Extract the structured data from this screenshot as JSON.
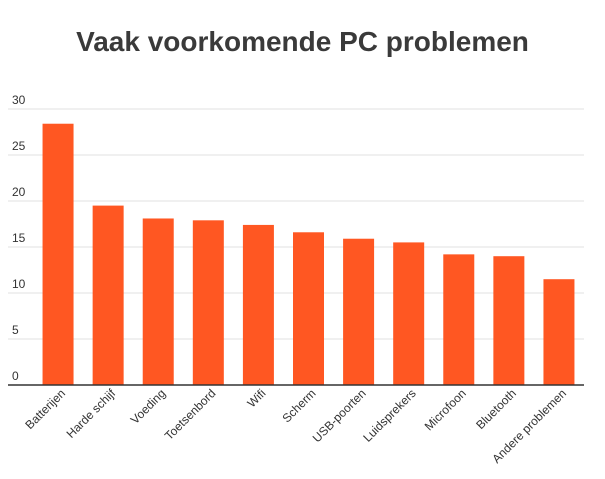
{
  "chart_data": {
    "type": "bar",
    "title": "Vaak voorkomende PC problemen",
    "xlabel": "",
    "ylabel": "",
    "categories": [
      "Batterijen",
      "Harde schijf",
      "Voeding",
      "Toetsenbord",
      "Wifi",
      "Scherm",
      "USB-poorten",
      "Luidsprekers",
      "Microfoon",
      "Bluetooth",
      "Andere problemen"
    ],
    "values": [
      28.4,
      19.5,
      18.1,
      17.9,
      17.4,
      16.6,
      15.9,
      15.5,
      14.2,
      14.0,
      11.5
    ],
    "ylim": [
      0,
      30
    ],
    "yticks": [
      0,
      5,
      10,
      15,
      20,
      25,
      30
    ],
    "grid": true,
    "legend": "none",
    "bar_color": "#FF5722",
    "grid_color": "#e0e0e0",
    "axis_color": "#333333"
  }
}
